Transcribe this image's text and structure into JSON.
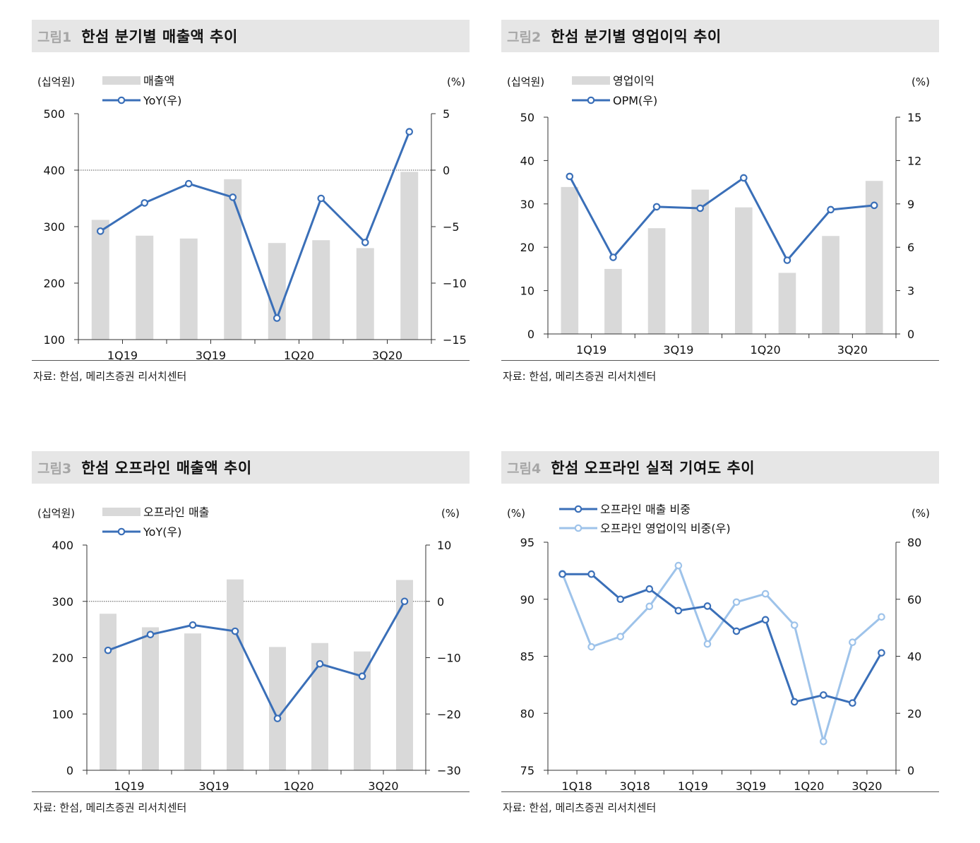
{
  "charts": [
    {
      "fig_no": "그림1",
      "title": "한섬 분기별 매출액 추이",
      "source": "자료: 한섬, 메리츠증권 리서치센터",
      "chart_data": {
        "type": "bar",
        "categories": [
          "1Q19",
          "2Q19",
          "3Q19",
          "4Q19",
          "1Q20",
          "2Q20",
          "3Q20",
          "4Q20"
        ],
        "tick_labels": [
          "1Q19",
          "",
          "3Q19",
          "",
          "1Q20",
          "",
          "3Q20",
          ""
        ],
        "bar_series": {
          "name": "매출액",
          "values": [
            312,
            284,
            279,
            384,
            271,
            276,
            262,
            397
          ]
        },
        "line_series": {
          "name": "YoY(우)",
          "values": [
            -5.4,
            -2.9,
            -1.2,
            -2.4,
            -13.1,
            -2.5,
            -6.4,
            3.4
          ]
        },
        "ylabel_left": "(십억원)",
        "ylabel_right": "(%)",
        "ylim_left": [
          100,
          500
        ],
        "ylim_right": [
          -15,
          5
        ],
        "ticks_left": [
          100,
          200,
          300,
          400,
          500
        ],
        "ticks_right": [
          -15,
          -10,
          -5,
          0,
          5
        ],
        "ref_line_left": 400,
        "legend_placement": "top-left"
      }
    },
    {
      "fig_no": "그림2",
      "title": "한섬 분기별 영업이익 추이",
      "source": "자료: 한섬, 메리츠증권 리서치센터",
      "chart_data": {
        "type": "bar",
        "categories": [
          "1Q19",
          "2Q19",
          "3Q19",
          "4Q19",
          "1Q20",
          "2Q20",
          "3Q20",
          "4Q20"
        ],
        "tick_labels": [
          "1Q19",
          "",
          "3Q19",
          "",
          "1Q20",
          "",
          "3Q20",
          ""
        ],
        "bar_series": {
          "name": "영업이익",
          "values": [
            33.9,
            15.0,
            24.4,
            33.3,
            29.2,
            14.1,
            22.6,
            35.3
          ]
        },
        "line_series": {
          "name": "OPM(우)",
          "values": [
            10.9,
            5.3,
            8.8,
            8.7,
            10.8,
            5.1,
            8.6,
            8.9
          ]
        },
        "ylabel_left": "(십억원)",
        "ylabel_right": "(%)",
        "ylim_left": [
          0,
          50
        ],
        "ylim_right": [
          0,
          15
        ],
        "ticks_left": [
          0,
          10,
          20,
          30,
          40,
          50
        ],
        "ticks_right": [
          0,
          3,
          6,
          9,
          12,
          15
        ],
        "ref_line_left": null,
        "legend_placement": "top-left"
      }
    },
    {
      "fig_no": "그림3",
      "title": "한섬 오프라인 매출액 추이",
      "source": "자료: 한섬, 메리츠증권 리서치센터",
      "chart_data": {
        "type": "bar",
        "categories": [
          "1Q19",
          "2Q19",
          "3Q19",
          "4Q19",
          "1Q20",
          "2Q20",
          "3Q20",
          "4Q20"
        ],
        "tick_labels": [
          "1Q19",
          "",
          "3Q19",
          "",
          "1Q20",
          "",
          "3Q20",
          ""
        ],
        "bar_series": {
          "name": "오프라인 매출",
          "values": [
            278,
            254,
            243,
            339,
            219,
            226,
            211,
            338
          ]
        },
        "line_series": {
          "name": "YoY(우)",
          "values": [
            -8.7,
            -5.9,
            -4.2,
            -5.3,
            -20.8,
            -11.1,
            -13.3,
            0.0
          ]
        },
        "ylabel_left": "(십억원)",
        "ylabel_right": "(%)",
        "ylim_left": [
          0,
          400
        ],
        "ylim_right": [
          -30,
          10
        ],
        "ticks_left": [
          0,
          100,
          200,
          300,
          400
        ],
        "ticks_right": [
          -30,
          -20,
          -10,
          0,
          10
        ],
        "ref_line_left": 300,
        "legend_placement": "top-left"
      }
    },
    {
      "fig_no": "그림4",
      "title": "한섬 오프라인 실적 기여도 추이",
      "source": "자료: 한섬, 메리츠증권 리서치센터",
      "chart_data": {
        "type": "line",
        "categories": [
          "1Q18",
          "2Q18",
          "3Q18",
          "4Q18",
          "1Q19",
          "2Q19",
          "3Q19",
          "4Q19",
          "1Q20",
          "2Q20",
          "3Q20",
          "4Q20"
        ],
        "tick_labels": [
          "1Q18",
          "",
          "3Q18",
          "",
          "1Q19",
          "",
          "3Q19",
          "",
          "1Q20",
          "",
          "3Q20",
          ""
        ],
        "series": [
          {
            "name": "오프라인 매출 비중",
            "axis": "left",
            "color": "#3a6fb8",
            "values": [
              92.2,
              92.2,
              90.0,
              90.9,
              89.0,
              89.4,
              87.2,
              88.2,
              81.0,
              81.6,
              80.9,
              85.3
            ]
          },
          {
            "name": "오프라인 영업이익 비중(우)",
            "axis": "right",
            "color": "#9ec3ea",
            "values": [
              69.0,
              43.3,
              46.9,
              57.5,
              71.8,
              44.3,
              59.0,
              61.9,
              50.9,
              10.1,
              44.9,
              53.8
            ]
          }
        ],
        "ylabel_left": "(%)",
        "ylabel_right": "(%)",
        "ylim_left": [
          75,
          95
        ],
        "ylim_right": [
          0,
          80
        ],
        "ticks_left": [
          75,
          80,
          85,
          90,
          95
        ],
        "ticks_right": [
          0,
          20,
          40,
          60,
          80
        ],
        "legend_placement": "top-left"
      }
    }
  ],
  "colors": {
    "bar": "#d9d9d9",
    "line": "#3a6fb8",
    "line_light": "#9ec3ea",
    "title_bg": "#e6e6e6",
    "fig_no": "#a6a6a6"
  }
}
